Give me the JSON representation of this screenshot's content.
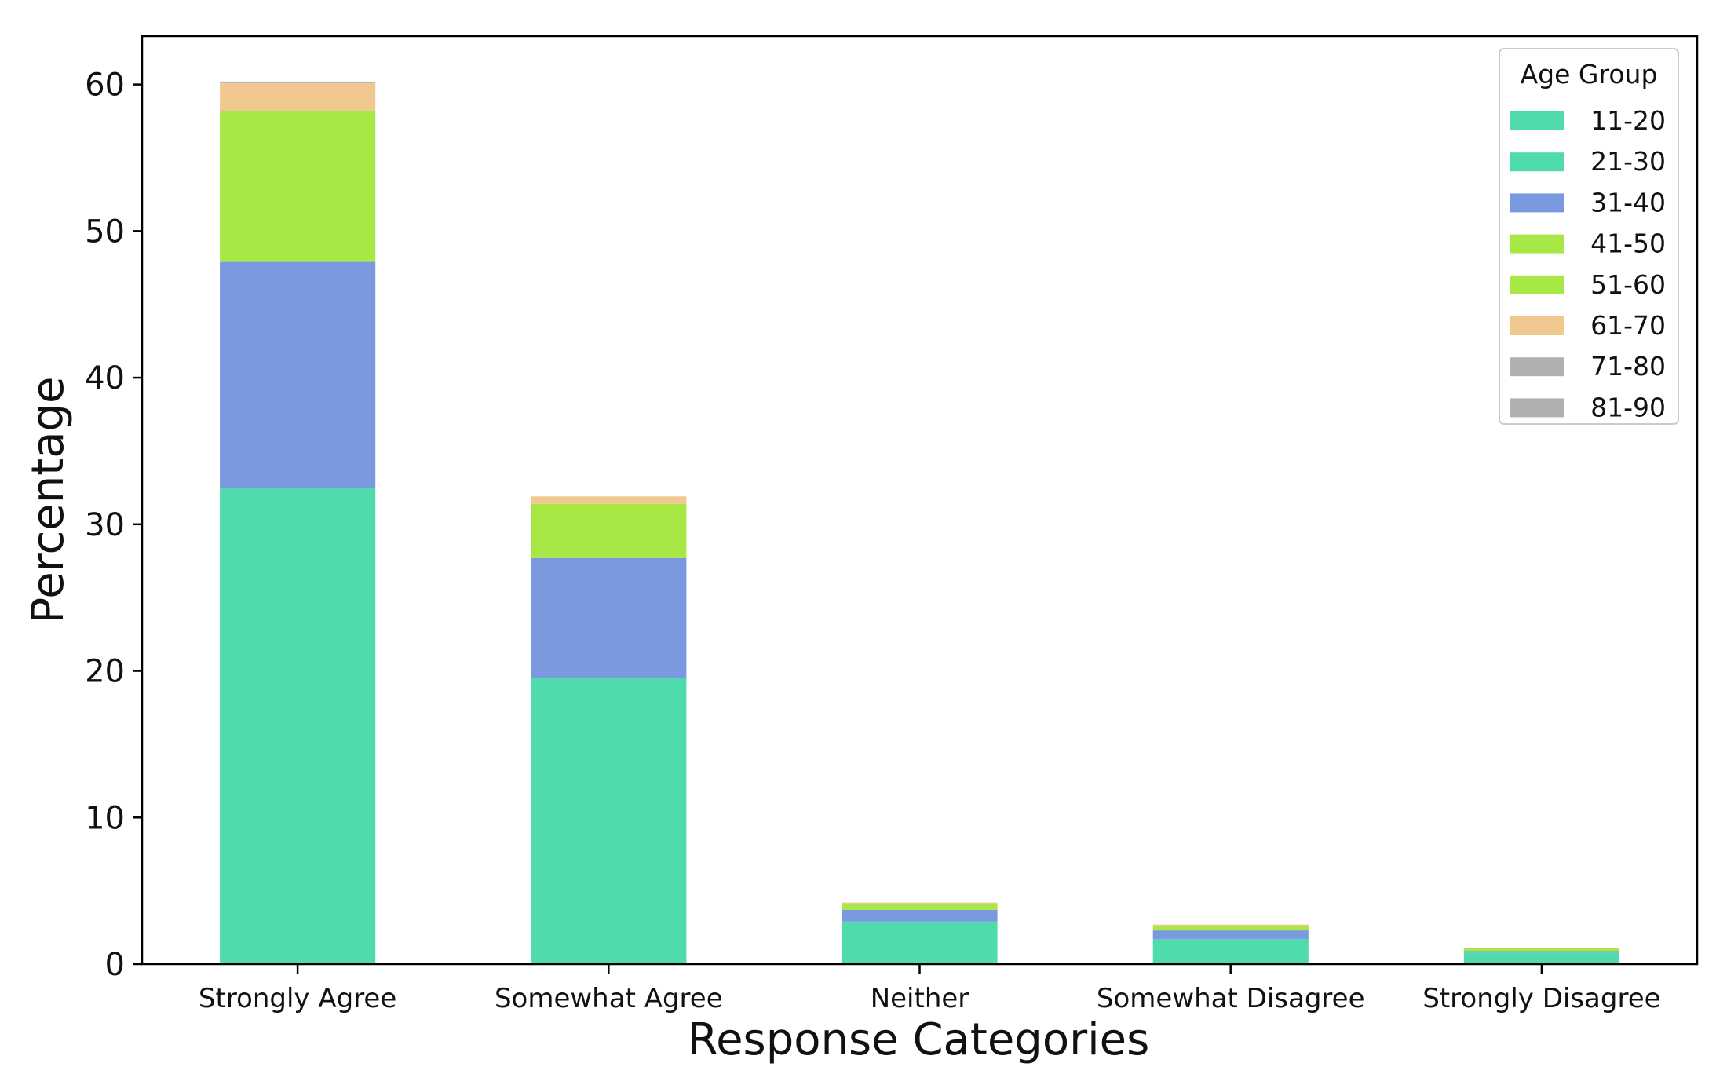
{
  "chart_data": {
    "type": "bar",
    "stacked": true,
    "categories": [
      "Strongly Agree",
      "Somewhat Agree",
      "Neither",
      "Somewhat Disagree",
      "Strongly Disagree"
    ],
    "xlabel": "Response Categories",
    "ylabel": "Percentage",
    "ylim": [
      0,
      63.3
    ],
    "yticks": [
      0,
      10,
      20,
      30,
      40,
      50,
      60
    ],
    "grid": false,
    "legend": {
      "title": "Age Group",
      "position": "top-right"
    },
    "series": [
      {
        "name": "11-20",
        "color": "#50dbae",
        "values": [
          0.0,
          0.0,
          0.0,
          0.0,
          0.0
        ]
      },
      {
        "name": "21-30",
        "color": "#50dbae",
        "values": [
          32.5,
          19.5,
          2.9,
          1.7,
          0.8
        ]
      },
      {
        "name": "31-40",
        "color": "#7b99de",
        "values": [
          15.4,
          8.2,
          0.8,
          0.6,
          0.1
        ]
      },
      {
        "name": "41-50",
        "color": "#a8e845",
        "values": [
          0.0,
          0.0,
          0.0,
          0.0,
          0.0
        ]
      },
      {
        "name": "51-60",
        "color": "#a8e845",
        "values": [
          10.3,
          3.7,
          0.4,
          0.3,
          0.2
        ]
      },
      {
        "name": "61-70",
        "color": "#f0c890",
        "values": [
          1.9,
          0.5,
          0.1,
          0.1,
          0.0
        ]
      },
      {
        "name": "71-80",
        "color": "#b0b0b0",
        "values": [
          0.1,
          0.0,
          0.0,
          0.0,
          0.0
        ]
      },
      {
        "name": "81-90",
        "color": "#b0b0b0",
        "values": [
          0.0,
          0.0,
          0.0,
          0.0,
          0.0
        ]
      }
    ]
  }
}
